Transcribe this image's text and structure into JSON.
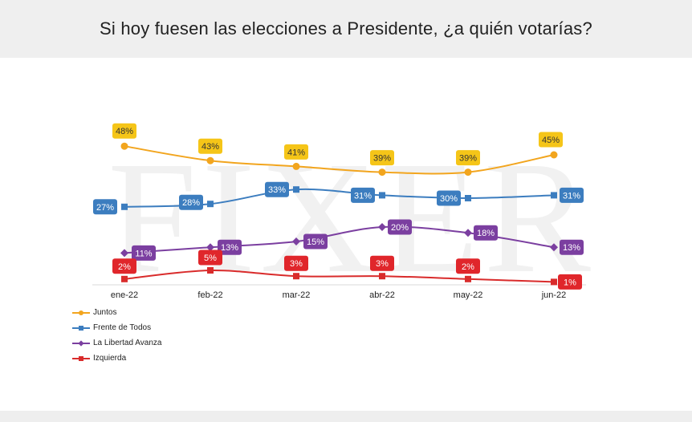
{
  "header": {
    "title": "Si hoy fuesen las elecciones a Presidente, ¿a quién votarías?"
  },
  "watermark": {
    "text": "FIXER"
  },
  "chart_data": {
    "type": "line",
    "title": "Si hoy fuesen las elecciones a Presidente, ¿a quién votarías?",
    "categories": [
      "ene-22",
      "feb-22",
      "mar-22",
      "abr-22",
      "may-22",
      "jun-22"
    ],
    "value_suffix": "%",
    "ylim": [
      0,
      50
    ],
    "grid": false,
    "legend": "bottom-left",
    "series": [
      {
        "name": "Juntos",
        "values": [
          48,
          43,
          41,
          39,
          39,
          45
        ],
        "color": "#F2A51E",
        "label_color": "#F5C518",
        "label_text_color": "#333333",
        "marker": "circle"
      },
      {
        "name": "Frente de Todos",
        "values": [
          27,
          28,
          33,
          31,
          30,
          31
        ],
        "color": "#3C7DBF",
        "label_color": "#3C7DBF",
        "label_text_color": "#ffffff",
        "marker": "square"
      },
      {
        "name": "La Libertad Avanza",
        "values": [
          11,
          13,
          15,
          20,
          18,
          13
        ],
        "color": "#7B3FA0",
        "label_color": "#7B3FA0",
        "label_text_color": "#ffffff",
        "marker": "diamond"
      },
      {
        "name": "Izquierda",
        "values": [
          2,
          5,
          3,
          3,
          2,
          1
        ],
        "color": "#D92B2B",
        "label_color": "#E0262B",
        "label_text_color": "#ffffff",
        "marker": "square"
      }
    ]
  }
}
